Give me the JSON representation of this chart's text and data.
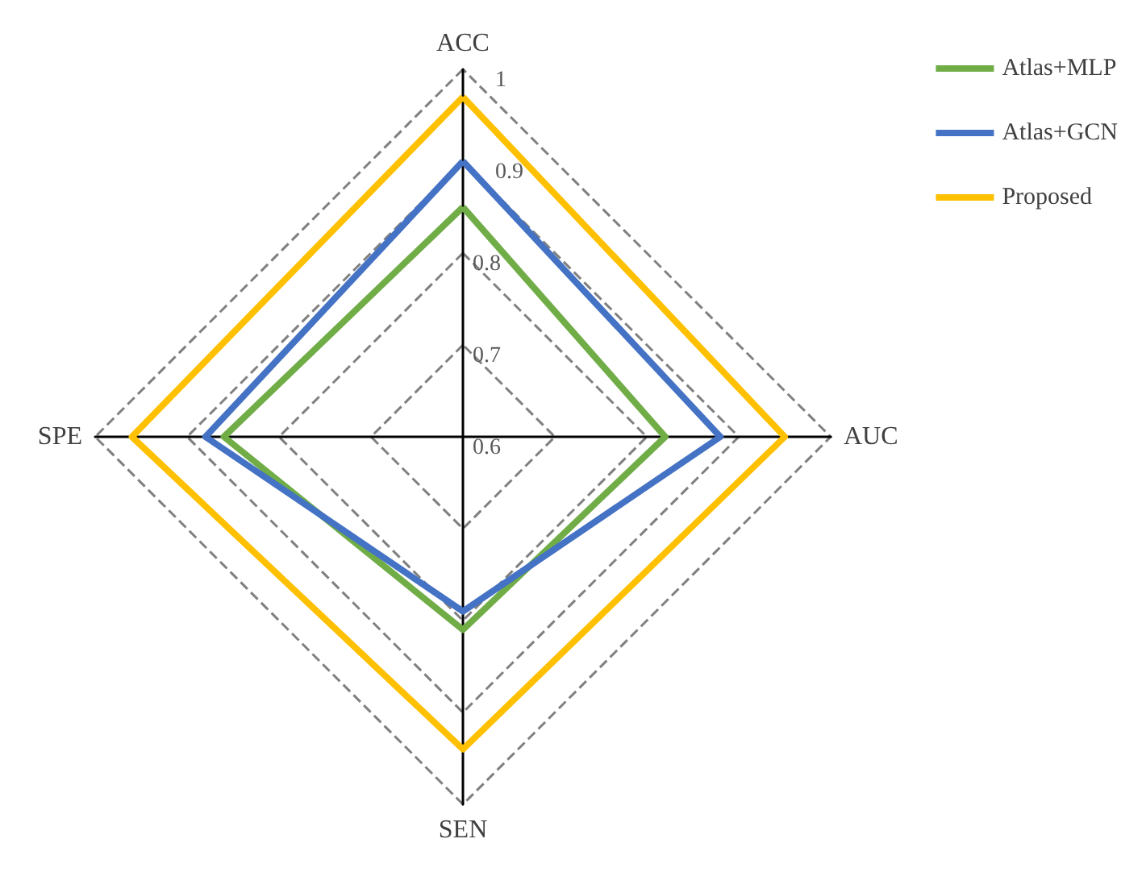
{
  "chart_data": {
    "type": "radar",
    "categories": [
      "ACC",
      "AUC",
      "SEN",
      "SPE"
    ],
    "series": [
      {
        "name": "Atlas+MLP",
        "color": "#70ad47",
        "values": [
          0.85,
          0.82,
          0.81,
          0.86
        ]
      },
      {
        "name": "Atlas+GCN",
        "color": "#4472c4",
        "values": [
          0.9,
          0.88,
          0.79,
          0.88
        ]
      },
      {
        "name": "Proposed",
        "color": "#ffc000",
        "values": [
          0.97,
          0.95,
          0.94,
          0.96
        ]
      }
    ],
    "ylim": [
      0.6,
      1
    ],
    "yticks": [
      0.6,
      0.7,
      0.8,
      0.9,
      1
    ],
    "grid": true,
    "legend": "top right",
    "marker": "none",
    "line_style": "solid"
  }
}
